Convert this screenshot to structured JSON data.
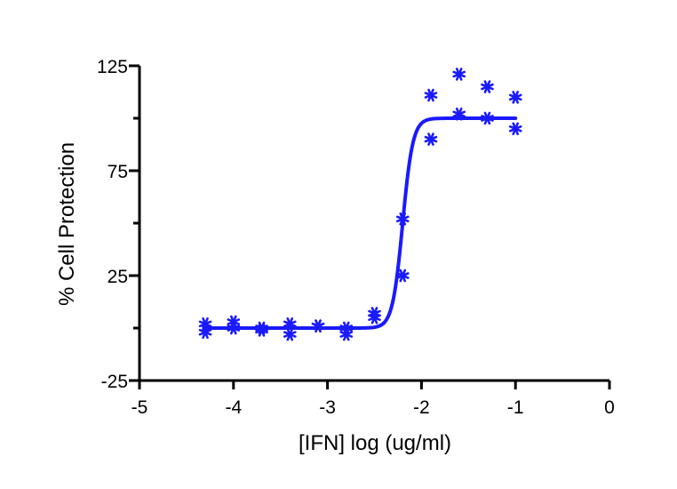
{
  "chart_data": {
    "type": "scatter",
    "title": "",
    "xlabel": "[IFN] log (ug/ml)",
    "ylabel": "% Cell Protection",
    "xlim": [
      -5,
      0
    ],
    "ylim": [
      -25,
      125
    ],
    "xticks": [
      -5,
      -4,
      -3,
      -2,
      -1,
      0
    ],
    "yticks": [
      -25,
      25,
      75,
      125
    ],
    "yticks_minor": [
      0,
      50,
      100
    ],
    "grid": false,
    "series_color": "#1a1aff",
    "marker": "asterisk",
    "points": [
      {
        "x": -4.3,
        "y": 2
      },
      {
        "x": -4.3,
        "y": -2
      },
      {
        "x": -4.0,
        "y": 3
      },
      {
        "x": -4.0,
        "y": 0
      },
      {
        "x": -3.7,
        "y": 0
      },
      {
        "x": -3.7,
        "y": -1
      },
      {
        "x": -3.4,
        "y": 2
      },
      {
        "x": -3.4,
        "y": -3
      },
      {
        "x": -3.1,
        "y": 1
      },
      {
        "x": -3.1,
        "y": 1
      },
      {
        "x": -2.8,
        "y": 0
      },
      {
        "x": -2.8,
        "y": -3
      },
      {
        "x": -2.5,
        "y": 7
      },
      {
        "x": -2.5,
        "y": 5
      },
      {
        "x": -2.2,
        "y": 52
      },
      {
        "x": -2.2,
        "y": 25
      },
      {
        "x": -1.9,
        "y": 111
      },
      {
        "x": -1.9,
        "y": 90
      },
      {
        "x": -1.6,
        "y": 121
      },
      {
        "x": -1.6,
        "y": 102
      },
      {
        "x": -1.3,
        "y": 115
      },
      {
        "x": -1.3,
        "y": 100
      },
      {
        "x": -1.0,
        "y": 110
      },
      {
        "x": -1.0,
        "y": 95
      }
    ],
    "fit": {
      "model": "sigmoidal dose-response",
      "bottom": 0,
      "top": 100,
      "logEC50": -2.2,
      "hill": 8,
      "x_range": [
        -4.3,
        -1.0
      ]
    }
  }
}
